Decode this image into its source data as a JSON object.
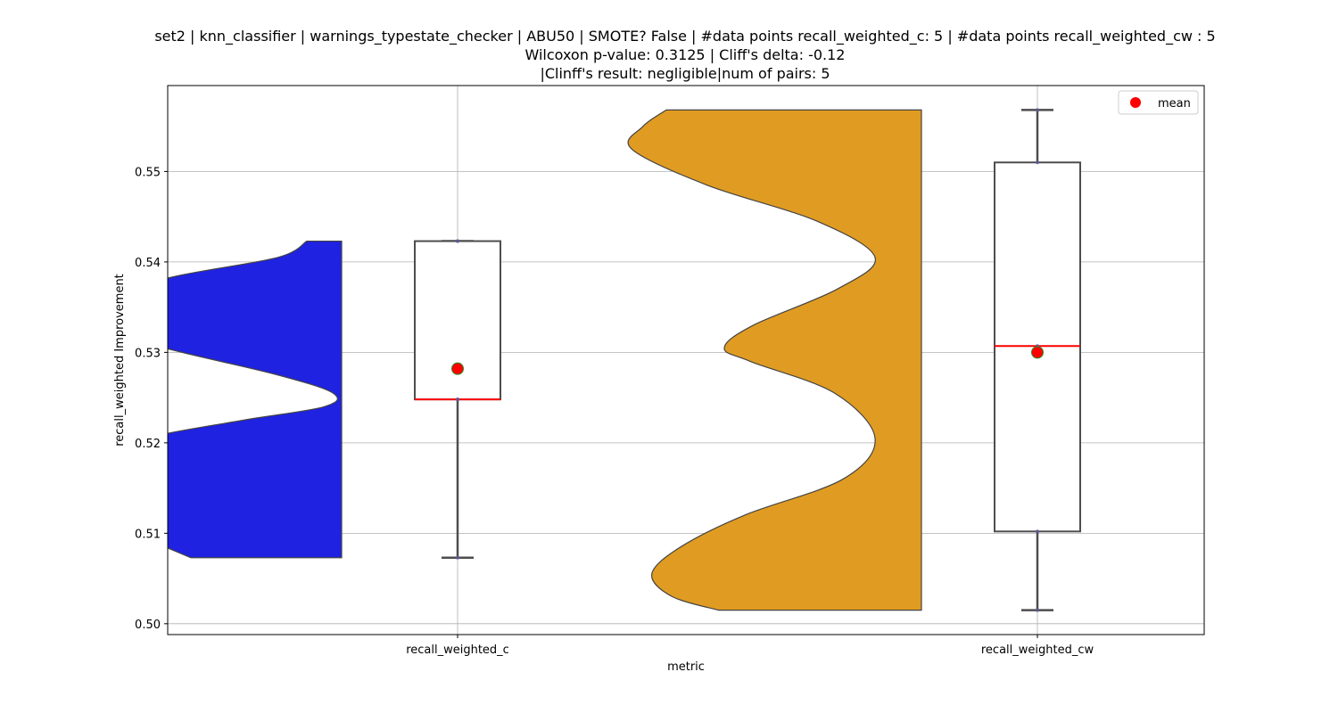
{
  "chart_data": {
    "type": "violin+box",
    "title_lines": [
      "set2 | knn_classifier | warnings_typestate_checker | ABU50 | SMOTE? False | #data points recall_weighted_c: 5 | #data points recall_weighted_cw : 5",
      "Wilcoxon p-value: 0.3125 | Cliff's delta: -0.12",
      "|Clinff's result: negligible|num of pairs: 5"
    ],
    "xlabel": "metric",
    "ylabel": "recall_weighted Improvement",
    "ylim": [
      0.4988,
      0.5595
    ],
    "yticks": [
      0.5,
      0.51,
      0.52,
      0.53,
      0.54,
      0.55
    ],
    "ytick_labels": [
      "0.50",
      "0.51",
      "0.52",
      "0.53",
      "0.54",
      "0.55"
    ],
    "grid": true,
    "legend": {
      "position": "top-right",
      "entries": [
        {
          "label": "mean",
          "color": "#ff0000",
          "marker": "circle"
        }
      ]
    },
    "categories": [
      "recall_weighted_c",
      "recall_weighted_cw"
    ],
    "series": [
      {
        "category": "recall_weighted_c",
        "color": "#1f22e0",
        "violin_min": 0.5073,
        "violin_max": 0.5423,
        "violin_density": [
          [
            0.5073,
            0.52
          ],
          [
            0.5095,
            0.68
          ],
          [
            0.5125,
            0.87
          ],
          [
            0.5155,
            0.96
          ],
          [
            0.518,
            0.9
          ],
          [
            0.5205,
            0.68
          ],
          [
            0.5225,
            0.34
          ],
          [
            0.524,
            0.06
          ],
          [
            0.5255,
            0.03
          ],
          [
            0.5275,
            0.22
          ],
          [
            0.53,
            0.55
          ],
          [
            0.5325,
            0.85
          ],
          [
            0.534,
            0.97
          ],
          [
            0.536,
            0.87
          ],
          [
            0.5385,
            0.56
          ],
          [
            0.5405,
            0.22
          ],
          [
            0.5423,
            0.12
          ]
        ],
        "box": {
          "whisker_low": 0.5073,
          "q1": 0.5248,
          "median": 0.5248,
          "q3": 0.5423,
          "whisker_high": 0.5423
        },
        "points": [
          0.5073,
          0.5248,
          0.5248,
          0.5423,
          0.5423
        ],
        "mean": 0.5282
      },
      {
        "category": "recall_weighted_cw",
        "color": "#e09c22",
        "violin_min": 0.5015,
        "violin_max": 0.5568,
        "violin_density": [
          [
            0.5015,
            0.7
          ],
          [
            0.503,
            0.86
          ],
          [
            0.5055,
            0.93
          ],
          [
            0.5085,
            0.83
          ],
          [
            0.512,
            0.61
          ],
          [
            0.516,
            0.27
          ],
          [
            0.5205,
            0.16
          ],
          [
            0.5255,
            0.3
          ],
          [
            0.529,
            0.59
          ],
          [
            0.5305,
            0.68
          ],
          [
            0.533,
            0.58
          ],
          [
            0.537,
            0.29
          ],
          [
            0.5405,
            0.16
          ],
          [
            0.5445,
            0.36
          ],
          [
            0.5485,
            0.74
          ],
          [
            0.5525,
            1.0
          ],
          [
            0.555,
            0.96
          ],
          [
            0.5568,
            0.88
          ]
        ],
        "box": {
          "whisker_low": 0.5015,
          "q1": 0.5102,
          "median": 0.5307,
          "q3": 0.551,
          "whisker_high": 0.5568
        },
        "points": [
          0.5015,
          0.5102,
          0.5307,
          0.551,
          0.5568
        ],
        "mean": 0.53
      }
    ]
  }
}
